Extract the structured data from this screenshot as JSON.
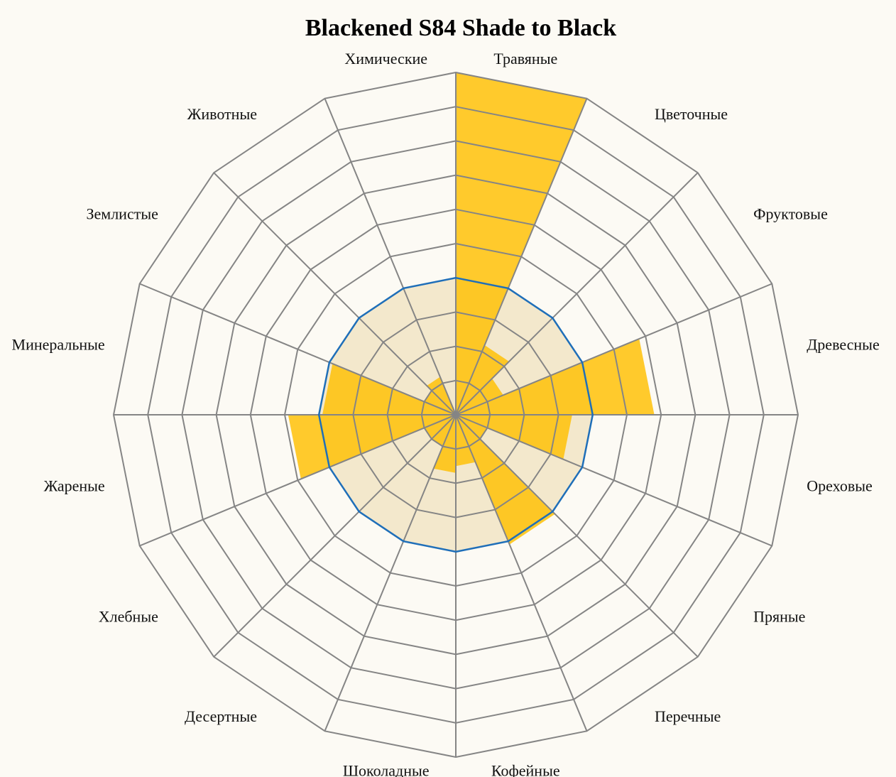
{
  "chart_data": {
    "type": "radial-bar",
    "title": "Blackened S84 Shade to Black",
    "categories": [
      "Травяные",
      "Цветочные",
      "Фруктовые",
      "Древесные",
      "Ореховые",
      "Пряные",
      "Перечные",
      "Кофейные",
      "Шоколадные",
      "Десертные",
      "Хлебные",
      "Жареные",
      "Минеральные",
      "Землистые",
      "Животные",
      "Химические"
    ],
    "values": [
      10,
      2.2,
      1.5,
      5.8,
      3.4,
      1.0,
      4.1,
      1.5,
      1.7,
      1.0,
      1.0,
      4.9,
      3.9,
      1.0,
      1.2,
      0
    ],
    "reference_value": 4,
    "rmax": 10,
    "grid_levels": 10,
    "colors": {
      "bar": "#ffbf00",
      "reference_line": "#1f6fb9",
      "reference_fill": "#f2e5c8",
      "grid": "#858585",
      "background": "#fcfaf4"
    }
  }
}
